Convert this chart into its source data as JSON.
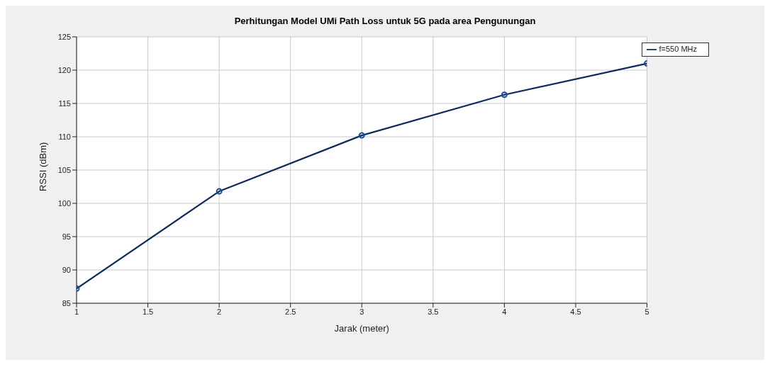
{
  "chart_data": {
    "type": "line",
    "title": "Perhitungan Model UMi Path Loss untuk 5G pada area Pengunungan",
    "xlabel": "Jarak (meter)",
    "ylabel": "RSSI (dBm)",
    "x": [
      1,
      2,
      3,
      4,
      5
    ],
    "series": [
      {
        "name": "f=550 MHz",
        "color": "#0d2c5c",
        "values": [
          87.2,
          101.8,
          110.2,
          116.3,
          121.0
        ]
      }
    ],
    "xlim": [
      1,
      5
    ],
    "xticks": [
      1,
      1.5,
      2,
      2.5,
      3,
      3.5,
      4,
      4.5,
      5
    ],
    "ylim": [
      85,
      125
    ],
    "yticks": [
      85,
      90,
      95,
      100,
      105,
      110,
      115,
      120,
      125
    ],
    "grid": true,
    "legend": "top right",
    "marker": "circle",
    "line_style": "solid"
  }
}
